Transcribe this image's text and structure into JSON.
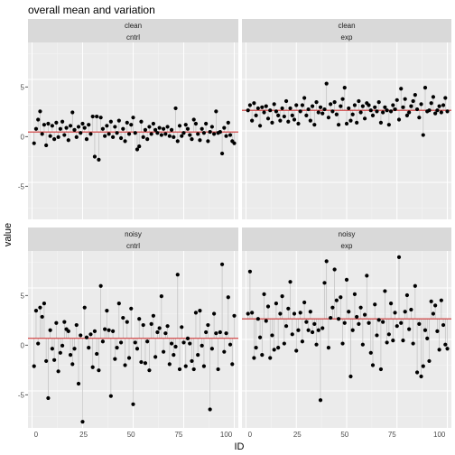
{
  "chart_data": {
    "type": "scatter",
    "title": "overall mean and variation",
    "xlabel": "ID",
    "ylabel": "value",
    "xlim": [
      -2,
      102
    ],
    "ylim": [
      -8.6,
      8.6
    ],
    "x_ticks": [
      "0",
      "25",
      "50",
      "75",
      "100"
    ],
    "y_ticks": [
      "-5",
      "0",
      "5"
    ],
    "grid": true,
    "legend": "none",
    "mean_line_color": "#cc3333",
    "segment_color": "#bfbfbf",
    "point_color": "#000000",
    "panel_bg": "#ebebeb",
    "strip_bg": "#d9d9d9",
    "panels": [
      {
        "label_top": "clean",
        "label_bottom": "cntrl",
        "mean": -0.1,
        "series": [
          {
            "x": [
              1,
              2,
              3,
              4,
              5,
              6,
              7,
              8,
              9,
              10,
              11,
              12,
              13,
              14,
              15,
              16,
              17,
              18,
              19,
              20,
              21,
              22,
              23,
              24,
              25,
              26,
              27,
              28,
              29,
              30,
              31,
              32,
              33,
              34,
              35,
              36,
              37,
              38,
              39,
              40,
              41,
              42,
              43,
              44,
              45,
              46,
              47,
              48,
              49,
              50,
              51,
              52,
              53,
              54,
              55,
              56,
              57,
              58,
              59,
              60,
              61,
              62,
              63,
              64,
              65,
              66,
              67,
              68,
              69,
              70,
              71,
              72,
              73,
              74,
              75,
              76,
              77,
              78,
              79,
              80,
              81,
              82,
              83,
              84,
              85,
              86,
              87,
              88,
              89,
              90,
              91,
              92,
              93,
              94,
              95,
              96,
              97,
              98,
              99,
              100
            ],
            "y": [
              -1.2,
              0.2,
              1.1,
              1.9,
              -0.3,
              0.6,
              -1.4,
              0.7,
              -0.5,
              0.5,
              -0.8,
              0.8,
              -0.6,
              0.2,
              0.9,
              -0.4,
              0.3,
              -0.9,
              0.5,
              1.8,
              0.1,
              -0.6,
              0.4,
              -0.2,
              0.7,
              0.3,
              -0.8,
              0.6,
              -0.3,
              1.4,
              -2.5,
              1.4,
              -2.8,
              1.3,
              0.2,
              -0.5,
              0.5,
              -0.3,
              0.9,
              -0.6,
              0.4,
              -0.2,
              1.0,
              -0.7,
              0.2,
              -1.0,
              0.8,
              -0.3,
              0.6,
              1.3,
              -0.2,
              -1.8,
              -1.5,
              0.9,
              -0.6,
              0.1,
              -0.8,
              0.4,
              -0.3,
              0.7,
              0.1,
              -0.2,
              0.3,
              -0.4,
              0.2,
              -0.3,
              0.4,
              -0.5,
              0.1,
              -0.6,
              2.2,
              -1.0,
              0.5,
              -0.5,
              -0.2,
              0.6,
              0.2,
              -0.4,
              -0.8,
              1.1,
              0.7,
              -0.3,
              -0.9,
              0.2,
              -0.2,
              0.7,
              -1.0,
              -0.1,
              0.4,
              -0.3,
              1.9,
              -0.2,
              -0.1,
              -2.2,
              0.3,
              -0.5,
              0.8,
              -0.4,
              -1.0,
              -1.2
            ]
          }
        ]
      },
      {
        "label_top": "clean",
        "label_bottom": "exp",
        "mean": 2.0,
        "series": [
          {
            "x": [
              1,
              2,
              3,
              4,
              5,
              6,
              7,
              8,
              9,
              10,
              11,
              12,
              13,
              14,
              15,
              16,
              17,
              18,
              19,
              20,
              21,
              22,
              23,
              24,
              25,
              26,
              27,
              28,
              29,
              30,
              31,
              32,
              33,
              34,
              35,
              36,
              37,
              38,
              39,
              40,
              41,
              42,
              43,
              44,
              45,
              46,
              47,
              48,
              49,
              50,
              51,
              52,
              53,
              54,
              55,
              56,
              57,
              58,
              59,
              60,
              61,
              62,
              63,
              64,
              65,
              66,
              67,
              68,
              69,
              70,
              71,
              72,
              73,
              74,
              75,
              76,
              77,
              78,
              79,
              80,
              81,
              82,
              83,
              84,
              85,
              86,
              87,
              88,
              89,
              90,
              91,
              92,
              93,
              94,
              95,
              96,
              97,
              98,
              99,
              100
            ],
            "y": [
              2.0,
              2.5,
              1.0,
              2.7,
              1.5,
              2.2,
              0.5,
              2.3,
              1.8,
              2.4,
              1.2,
              2.0,
              0.8,
              2.6,
              1.9,
              1.5,
              1.0,
              2.2,
              1.4,
              2.9,
              0.9,
              2.2,
              1.5,
              1.1,
              2.5,
              0.7,
              1.9,
              2.5,
              3.2,
              1.5,
              2.1,
              1.0,
              2.4,
              0.6,
              2.8,
              1.8,
              2.3,
              1.7,
              2.1,
              4.6,
              1.3,
              2.6,
              1.9,
              2.8,
              1.6,
              0.6,
              2.4,
              3.1,
              4.2,
              0.7,
              2.2,
              1.0,
              1.6,
              2.5,
              0.8,
              2.9,
              1.8,
              2.4,
              1.2,
              2.7,
              2.5,
              2.0,
              1.5,
              2.3,
              1.9,
              2.8,
              0.8,
              1.8,
              2.3,
              2.0,
              0.6,
              1.9,
              2.5,
              2.1,
              3.0,
              1.1,
              4.1,
              2.3,
              3.1,
              1.5,
              1.8,
              2.4,
              2.9,
              3.5,
              2.1,
              1.3,
              2.6,
              -0.4,
              4.2,
              1.9,
              2.0,
              2.7,
              3.3,
              1.7,
              2.0,
              2.4,
              1.8,
              2.5,
              3.2,
              1.9
            ]
          }
        ]
      },
      {
        "label_top": "noisy",
        "label_bottom": "cntrl",
        "mean": 0.1,
        "series": [
          {
            "x": [
              1,
              2,
              3,
              4,
              5,
              6,
              7,
              8,
              9,
              10,
              11,
              12,
              13,
              14,
              15,
              16,
              17,
              18,
              19,
              20,
              21,
              22,
              23,
              24,
              25,
              26,
              27,
              28,
              29,
              30,
              31,
              32,
              33,
              34,
              35,
              36,
              37,
              38,
              39,
              40,
              41,
              42,
              43,
              44,
              45,
              46,
              47,
              48,
              49,
              50,
              51,
              52,
              53,
              54,
              55,
              56,
              57,
              58,
              59,
              60,
              61,
              62,
              63,
              64,
              65,
              66,
              67,
              68,
              69,
              70,
              71,
              72,
              73,
              74,
              75,
              76,
              77,
              78,
              79,
              80,
              81,
              82,
              83,
              84,
              85,
              86,
              87,
              88,
              89,
              90,
              91,
              92,
              93,
              94,
              95,
              96,
              97,
              98,
              99,
              100
            ],
            "y": [
              -2.6,
              2.8,
              -0.4,
              3.1,
              2.2,
              3.5,
              -2.1,
              -5.7,
              0.9,
              -0.9,
              -2.0,
              1.6,
              -3.1,
              -1.3,
              -0.6,
              1.7,
              1.0,
              0.8,
              -1.5,
              -2.4,
              -0.9,
              1.4,
              -4.3,
              0.4,
              -8.0,
              3.1,
              0.2,
              -0.8,
              0.5,
              -2.7,
              0.8,
              -1.4,
              -3.0,
              5.2,
              -0.2,
              1.0,
              2.8,
              0.9,
              -5.5,
              0.8,
              -1.9,
              -0.8,
              3.5,
              -0.3,
              2.1,
              -2.5,
              1.7,
              -1.8,
              3.0,
              -6.3,
              -0.3,
              -0.9,
              2.0,
              -2.2,
              1.4,
              -2.3,
              -0.2,
              -3.0,
              1.5,
              2.3,
              -1.7,
              0.7,
              1.1,
              4.2,
              -1.2,
              0.6,
              1.3,
              -2.4,
              -0.4,
              -1.5,
              -0.7,
              6.3,
              -2.9,
              1.2,
              -0.3,
              -2.6,
              0.1,
              -0.4,
              -2.1,
              -2.9,
              2.6,
              -1.5,
              2.8,
              -0.6,
              -2.6,
              0.7,
              1.4,
              -6.8,
              -0.9,
              2.5,
              0.6,
              -2.9,
              0.7,
              7.3,
              -1.2,
              0.6,
              4.1,
              -0.5,
              -2.4,
              2.3
            ]
          }
        ]
      },
      {
        "label_top": "noisy",
        "label_bottom": "exp",
        "mean": 2.0,
        "series": [
          {
            "x": [
              1,
              2,
              3,
              4,
              5,
              6,
              7,
              8,
              9,
              10,
              11,
              12,
              13,
              14,
              15,
              16,
              17,
              18,
              19,
              20,
              21,
              22,
              23,
              24,
              25,
              26,
              27,
              28,
              29,
              30,
              31,
              32,
              33,
              34,
              35,
              36,
              37,
              38,
              39,
              40,
              41,
              42,
              43,
              44,
              45,
              46,
              47,
              48,
              49,
              50,
              51,
              52,
              53,
              54,
              55,
              56,
              57,
              58,
              59,
              60,
              61,
              62,
              63,
              64,
              65,
              66,
              67,
              68,
              69,
              70,
              71,
              72,
              73,
              74,
              75,
              76,
              77,
              78,
              79,
              80,
              81,
              82,
              83,
              84,
              85,
              86,
              87,
              88,
              89,
              90,
              91,
              92,
              93,
              94,
              95,
              96,
              97,
              98,
              99,
              100
            ],
            "y": [
              2.5,
              6.6,
              2.6,
              -1.8,
              -0.8,
              2.0,
              0.2,
              -1.5,
              4.4,
              1.8,
              3.2,
              -1.8,
              0.4,
              -1.0,
              3.5,
              -0.8,
              2.5,
              4.2,
              -0.4,
              1.3,
              3.0,
              5.6,
              0.5,
              2.5,
              -1.1,
              0.9,
              2.6,
              -0.2,
              3.6,
              1.7,
              0.9,
              2.7,
              0.7,
              1.5,
              -0.5,
              0.9,
              -5.9,
              1.1,
              5.5,
              7.6,
              -0.8,
              2.1,
              3.1,
              6.8,
              3.8,
              2.0,
              4.1,
              -0.4,
              1.6,
              5.8,
              2.7,
              -3.6,
              0.9,
              4.4,
              2.2,
              1.5,
              3.1,
              -0.5,
              2.4,
              6.2,
              1.6,
              -1.3,
              -2.5,
              3.4,
              0.4,
              1.9,
              -2.9,
              1.7,
              4.7,
              -0.3,
              0.5,
              3.5,
              -0.1,
              2.6,
              1.3,
              8.0,
              1.6,
              -0.1,
              2.7,
              4.3,
              1.0,
              2.9,
              -0.4,
              5.2,
              -3.2,
              1.5,
              -3.6,
              -2.6,
              0.9,
              0.1,
              -2.1,
              3.7,
              2.5,
              3.3,
              0.8,
              -1.0,
              3.8,
              1.4,
              -0.5,
              -0.9
            ]
          }
        ]
      }
    ]
  }
}
